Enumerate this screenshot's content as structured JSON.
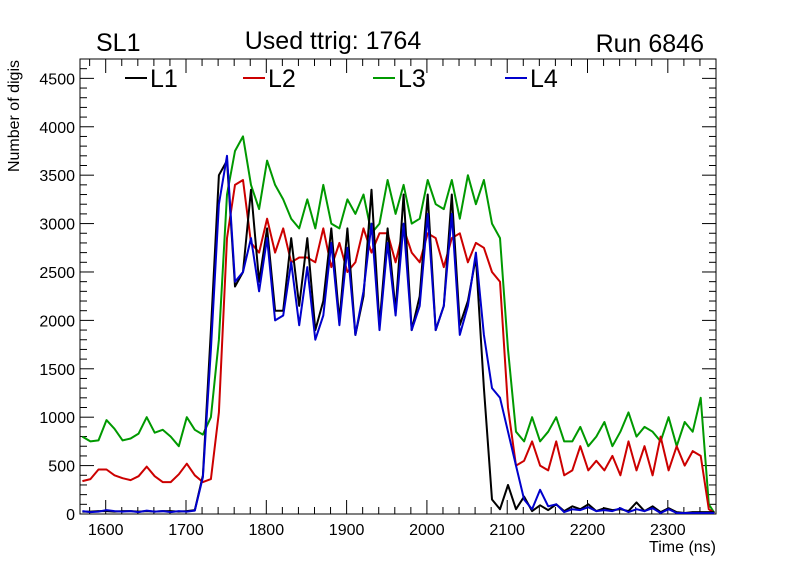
{
  "header": {
    "left": "SL1",
    "center_label": "Used ttrig: 1764",
    "right": "Run 6846"
  },
  "chart_data": {
    "type": "line",
    "title": "Used ttrig: 1764",
    "xlabel": "Time (ns)",
    "ylabel": "Number of digis",
    "xlim": [
      1568,
      2360
    ],
    "ylim": [
      0,
      4700
    ],
    "x_major_ticks": [
      1600,
      1700,
      1800,
      1900,
      2000,
      2100,
      2200,
      2300
    ],
    "x_tick_labels": [
      "1600",
      "1700",
      "1800",
      "1900",
      "2000",
      "2100",
      "2200",
      "2300"
    ],
    "y_major_ticks": [
      0,
      500,
      1000,
      1500,
      2000,
      2500,
      3000,
      3500,
      4000,
      4500
    ],
    "y_tick_labels": [
      "0",
      "500",
      "1000",
      "1500",
      "2000",
      "2500",
      "3000",
      "3500",
      "4000",
      "4500"
    ],
    "grid": false,
    "legend_position": "top",
    "x": [
      1571,
      1581,
      1591,
      1601,
      1611,
      1621,
      1631,
      1641,
      1651,
      1661,
      1671,
      1681,
      1691,
      1701,
      1711,
      1721,
      1731,
      1741,
      1751,
      1761,
      1771,
      1781,
      1791,
      1801,
      1811,
      1821,
      1831,
      1841,
      1851,
      1861,
      1871,
      1881,
      1891,
      1901,
      1911,
      1921,
      1931,
      1941,
      1951,
      1961,
      1971,
      1981,
      1991,
      2001,
      2011,
      2021,
      2031,
      2041,
      2051,
      2061,
      2071,
      2081,
      2091,
      2101,
      2111,
      2121,
      2131,
      2141,
      2151,
      2161,
      2171,
      2181,
      2191,
      2201,
      2211,
      2221,
      2231,
      2241,
      2251,
      2261,
      2271,
      2281,
      2291,
      2301,
      2311,
      2321,
      2331,
      2341,
      2351,
      2358
    ],
    "series": [
      {
        "name": "L1",
        "color": "#000000",
        "values": [
          25,
          25,
          30,
          30,
          25,
          30,
          30,
          25,
          30,
          25,
          30,
          30,
          25,
          30,
          40,
          400,
          1900,
          3500,
          3650,
          2350,
          2500,
          3350,
          2400,
          2950,
          2100,
          2100,
          2850,
          2150,
          2850,
          1900,
          2200,
          2950,
          2000,
          2950,
          1850,
          2250,
          3350,
          1950,
          2950,
          2100,
          3300,
          1900,
          2250,
          3300,
          1900,
          2150,
          3300,
          1950,
          2200,
          2650,
          1300,
          150,
          50,
          300,
          50,
          180,
          30,
          90,
          40,
          100,
          30,
          80,
          50,
          100,
          30,
          60,
          40,
          50,
          30,
          120,
          30,
          80,
          20,
          60,
          20,
          10,
          20,
          20,
          20,
          20
        ]
      },
      {
        "name": "L2",
        "color": "#cc0000",
        "values": [
          340,
          360,
          460,
          460,
          400,
          370,
          350,
          390,
          490,
          390,
          330,
          330,
          410,
          520,
          400,
          330,
          360,
          1050,
          2850,
          3400,
          3450,
          2800,
          2700,
          3050,
          2700,
          2950,
          2600,
          2650,
          2650,
          2600,
          2950,
          2550,
          2800,
          2500,
          2600,
          2950,
          2700,
          2900,
          2900,
          2600,
          2950,
          2700,
          2600,
          2900,
          2850,
          2550,
          2850,
          2900,
          2600,
          2800,
          2750,
          2500,
          2400,
          1100,
          500,
          550,
          750,
          500,
          450,
          750,
          400,
          450,
          700,
          450,
          550,
          450,
          600,
          400,
          750,
          450,
          700,
          400,
          800,
          450,
          700,
          500,
          650,
          600,
          50,
          10
        ]
      },
      {
        "name": "L3",
        "color": "#009900",
        "values": [
          800,
          750,
          760,
          970,
          880,
          760,
          780,
          830,
          1000,
          840,
          870,
          800,
          700,
          1000,
          870,
          820,
          1000,
          1800,
          3300,
          3750,
          3900,
          3400,
          3150,
          3650,
          3400,
          3250,
          3050,
          2950,
          3250,
          2950,
          3400,
          3000,
          2950,
          3250,
          3100,
          3300,
          2900,
          3000,
          3450,
          3100,
          3400,
          3000,
          3050,
          3450,
          3200,
          3150,
          3450,
          3050,
          3500,
          3200,
          3450,
          3000,
          2850,
          1700,
          850,
          750,
          1000,
          750,
          850,
          1000,
          750,
          750,
          900,
          700,
          800,
          950,
          700,
          850,
          1050,
          800,
          900,
          850,
          750,
          1000,
          700,
          950,
          850,
          1200,
          100,
          10
        ]
      },
      {
        "name": "L4",
        "color": "#0000cc",
        "values": [
          30,
          20,
          25,
          40,
          30,
          25,
          30,
          20,
          35,
          25,
          30,
          20,
          30,
          25,
          35,
          380,
          1700,
          3200,
          3700,
          2400,
          2500,
          2850,
          2300,
          2850,
          2000,
          2050,
          2600,
          1950,
          2550,
          1800,
          2050,
          2800,
          1950,
          2750,
          1850,
          2300,
          3000,
          1900,
          2800,
          2050,
          3000,
          1900,
          2150,
          3100,
          1900,
          2150,
          3100,
          1850,
          2150,
          2700,
          1850,
          1300,
          1200,
          850,
          500,
          150,
          50,
          250,
          80,
          100,
          20,
          50,
          40,
          70,
          30,
          40,
          30,
          60,
          20,
          50,
          30,
          60,
          10,
          50,
          10,
          10,
          10,
          10,
          10,
          10
        ]
      }
    ]
  }
}
